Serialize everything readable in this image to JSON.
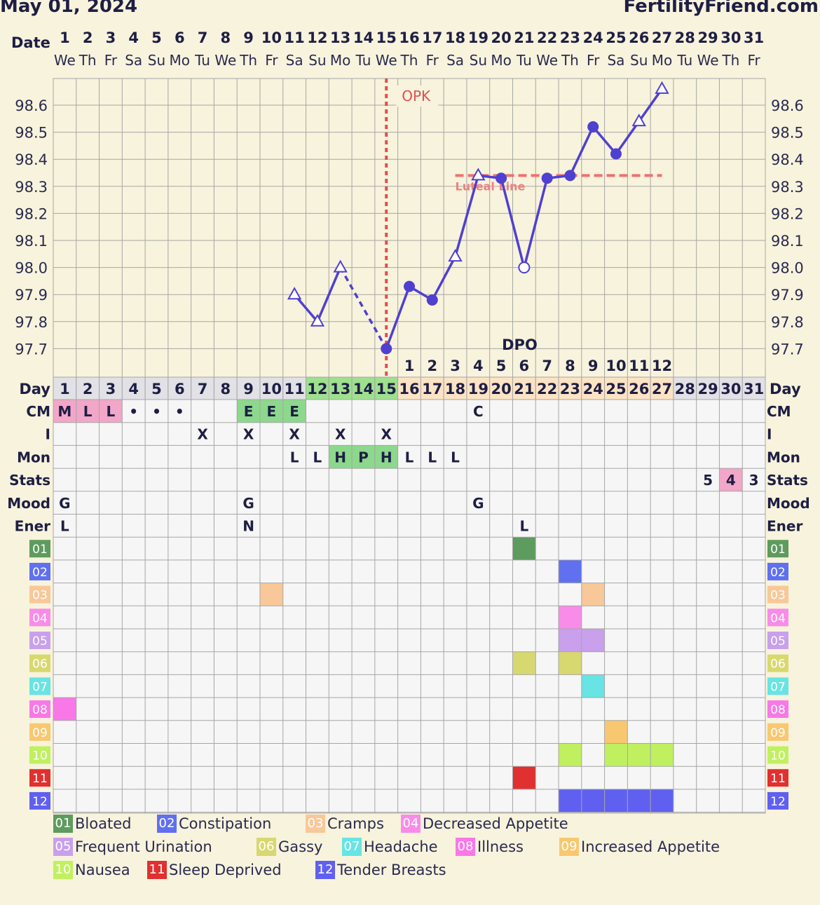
{
  "header": {
    "date": "May 01, 2024",
    "site": "FertilityFriend.com"
  },
  "labels": {
    "date": "Date",
    "day": "Day",
    "dpo": "DPO",
    "opk": "OPK",
    "luteal": "Luteal Line"
  },
  "days": [
    1,
    2,
    3,
    4,
    5,
    6,
    7,
    8,
    9,
    10,
    11,
    12,
    13,
    14,
    15,
    16,
    17,
    18,
    19,
    20,
    21,
    22,
    23,
    24,
    25,
    26,
    27,
    28,
    29,
    30,
    31
  ],
  "weekdays": [
    "We",
    "Th",
    "Fr",
    "Sa",
    "Su",
    "Mo",
    "Tu",
    "We",
    "Th",
    "Fr",
    "Sa",
    "Su",
    "Mo",
    "Tu",
    "We",
    "Th",
    "Fr",
    "Sa",
    "Su",
    "Mo",
    "Tu",
    "We",
    "Th",
    "Fr",
    "Sa",
    "Su",
    "Mo",
    "Tu",
    "We",
    "Th",
    "Fr"
  ],
  "dpo": [
    1,
    2,
    3,
    4,
    5,
    6,
    7,
    8,
    9,
    10,
    11,
    12
  ],
  "dpo_start_day": 16,
  "colors": {
    "fertile": "#9ee08e",
    "luteal": "#fce3c4",
    "neutral": "#e1e1e6",
    "line": "#5040d0",
    "grid": "#a6a6a6",
    "opk": "#e05050",
    "cm_menses": "#f2a6c8",
    "cm_egg": "#8cd88c",
    "mon_high": "#8cd88c",
    "stats_hi": "#f2a6c8"
  },
  "row_labels": [
    "CM",
    "I",
    "Mon",
    "Stats",
    "Mood",
    "Ener"
  ],
  "rows": {
    "CM": {
      "1": "M",
      "2": "L",
      "3": "L",
      "4": "•",
      "5": "•",
      "6": "•",
      "9": "E",
      "10": "E",
      "11": "E",
      "19": "C"
    },
    "I": {
      "7": "X",
      "9": "X",
      "11": "X",
      "13": "X",
      "15": "X"
    },
    "Mon": {
      "11": "L",
      "12": "L",
      "13": "H",
      "14": "P",
      "15": "H",
      "16": "L",
      "17": "L",
      "18": "L"
    },
    "Stats": {
      "29": "5",
      "30": "4",
      "31": "3"
    },
    "Mood": {
      "1": "G",
      "9": "G",
      "19": "G"
    },
    "Ener": {
      "1": "L",
      "9": "N",
      "21": "L"
    }
  },
  "symptoms": [
    {
      "code": "01",
      "name": "Bloated",
      "color": "#5e9b5e",
      "days": [
        21
      ]
    },
    {
      "code": "02",
      "name": "Constipation",
      "color": "#6070ee",
      "days": [
        23
      ]
    },
    {
      "code": "03",
      "name": "Cramps",
      "color": "#f8c898",
      "days": [
        10,
        24
      ]
    },
    {
      "code": "04",
      "name": "Decreased Appetite",
      "color": "#f88ce8",
      "days": [
        23
      ]
    },
    {
      "code": "05",
      "name": "Frequent Urination",
      "color": "#c8a0ec",
      "days": [
        23,
        24
      ]
    },
    {
      "code": "06",
      "name": "Gassy",
      "color": "#d8d870",
      "days": [
        21,
        23
      ]
    },
    {
      "code": "07",
      "name": "Headache",
      "color": "#68e4e4",
      "days": [
        24
      ]
    },
    {
      "code": "08",
      "name": "Illness",
      "color": "#f878e8",
      "days": [
        1
      ]
    },
    {
      "code": "09",
      "name": "Increased Appetite",
      "color": "#f8c870",
      "days": [
        25
      ]
    },
    {
      "code": "10",
      "name": "Nausea",
      "color": "#c0f060",
      "days": [
        23,
        25,
        26,
        27
      ]
    },
    {
      "code": "11",
      "name": "Sleep Deprived",
      "color": "#e03030",
      "days": [
        21
      ]
    },
    {
      "code": "12",
      "name": "Tender Breasts",
      "color": "#6060f0",
      "days": [
        23,
        24,
        25,
        26,
        27
      ]
    }
  ],
  "chart_data": {
    "type": "line",
    "title": "",
    "xlabel": "Day",
    "ylabel": "",
    "ylim": [
      97.6,
      98.7
    ],
    "yticks": [
      "98.6",
      "98.5",
      "98.4",
      "98.3",
      "98.2",
      "98.1",
      "98.0",
      "97.9",
      "97.8",
      "97.7"
    ],
    "series": [
      {
        "points": [
          {
            "day": 11,
            "temp": 97.9,
            "marker": "triangle-open"
          },
          {
            "day": 12,
            "temp": 97.8,
            "marker": "triangle-open"
          },
          {
            "day": 13,
            "temp": 98.0,
            "marker": "triangle-open"
          },
          {
            "day": 15,
            "temp": 97.7,
            "marker": "circle"
          },
          {
            "day": 16,
            "temp": 97.93,
            "marker": "circle"
          },
          {
            "day": 17,
            "temp": 97.88,
            "marker": "circle"
          },
          {
            "day": 18,
            "temp": 98.04,
            "marker": "triangle-open"
          },
          {
            "day": 19,
            "temp": 98.34,
            "marker": "triangle-open"
          },
          {
            "day": 20,
            "temp": 98.33,
            "marker": "circle"
          },
          {
            "day": 21,
            "temp": 98.0,
            "marker": "circle-open"
          },
          {
            "day": 22,
            "temp": 98.33,
            "marker": "circle"
          },
          {
            "day": 23,
            "temp": 98.34,
            "marker": "circle"
          },
          {
            "day": 24,
            "temp": 98.52,
            "marker": "circle"
          },
          {
            "day": 25,
            "temp": 98.42,
            "marker": "circle"
          },
          {
            "day": 26,
            "temp": 98.54,
            "marker": "triangle-open"
          },
          {
            "day": 27,
            "temp": 98.66,
            "marker": "triangle-open"
          }
        ]
      }
    ],
    "dashed_segments": [
      [
        13,
        15
      ]
    ],
    "opk_day": 15,
    "luteal_line": {
      "temp": 98.34,
      "from_day": 18,
      "to_day": 27
    }
  }
}
